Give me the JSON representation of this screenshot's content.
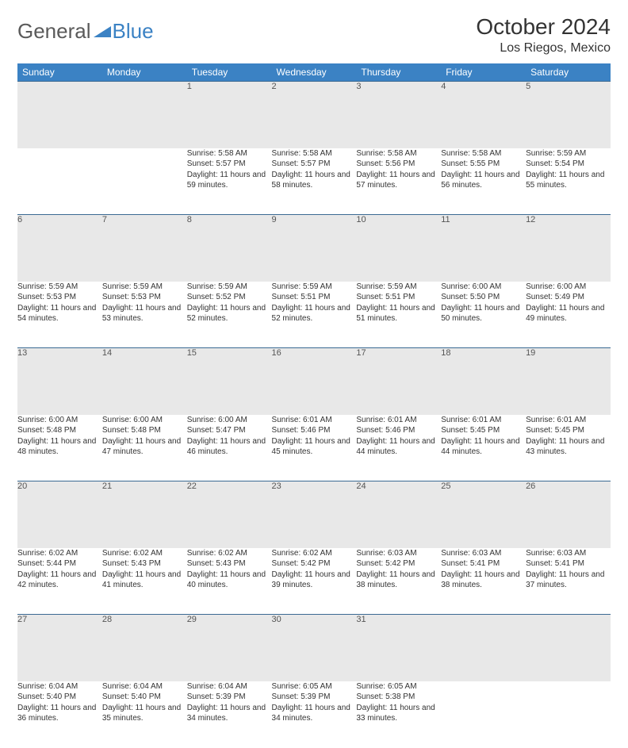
{
  "brand": {
    "part1": "General",
    "part2": "Blue"
  },
  "title": "October 2024",
  "location": "Los Riegos, Mexico",
  "colors": {
    "header_bg": "#3b82c4",
    "header_text": "#ffffff",
    "daynum_bg": "#e8e8e8",
    "row_separator": "#3b6a93",
    "body_text": "#333333",
    "logo_gray": "#5a5a5a",
    "logo_blue": "#3b82c4"
  },
  "weekdays": [
    "Sunday",
    "Monday",
    "Tuesday",
    "Wednesday",
    "Thursday",
    "Friday",
    "Saturday"
  ],
  "weeks": [
    [
      null,
      null,
      {
        "n": "1",
        "sr": "5:58 AM",
        "ss": "5:57 PM",
        "dl": "11 hours and 59 minutes."
      },
      {
        "n": "2",
        "sr": "5:58 AM",
        "ss": "5:57 PM",
        "dl": "11 hours and 58 minutes."
      },
      {
        "n": "3",
        "sr": "5:58 AM",
        "ss": "5:56 PM",
        "dl": "11 hours and 57 minutes."
      },
      {
        "n": "4",
        "sr": "5:58 AM",
        "ss": "5:55 PM",
        "dl": "11 hours and 56 minutes."
      },
      {
        "n": "5",
        "sr": "5:59 AM",
        "ss": "5:54 PM",
        "dl": "11 hours and 55 minutes."
      }
    ],
    [
      {
        "n": "6",
        "sr": "5:59 AM",
        "ss": "5:53 PM",
        "dl": "11 hours and 54 minutes."
      },
      {
        "n": "7",
        "sr": "5:59 AM",
        "ss": "5:53 PM",
        "dl": "11 hours and 53 minutes."
      },
      {
        "n": "8",
        "sr": "5:59 AM",
        "ss": "5:52 PM",
        "dl": "11 hours and 52 minutes."
      },
      {
        "n": "9",
        "sr": "5:59 AM",
        "ss": "5:51 PM",
        "dl": "11 hours and 52 minutes."
      },
      {
        "n": "10",
        "sr": "5:59 AM",
        "ss": "5:51 PM",
        "dl": "11 hours and 51 minutes."
      },
      {
        "n": "11",
        "sr": "6:00 AM",
        "ss": "5:50 PM",
        "dl": "11 hours and 50 minutes."
      },
      {
        "n": "12",
        "sr": "6:00 AM",
        "ss": "5:49 PM",
        "dl": "11 hours and 49 minutes."
      }
    ],
    [
      {
        "n": "13",
        "sr": "6:00 AM",
        "ss": "5:48 PM",
        "dl": "11 hours and 48 minutes."
      },
      {
        "n": "14",
        "sr": "6:00 AM",
        "ss": "5:48 PM",
        "dl": "11 hours and 47 minutes."
      },
      {
        "n": "15",
        "sr": "6:00 AM",
        "ss": "5:47 PM",
        "dl": "11 hours and 46 minutes."
      },
      {
        "n": "16",
        "sr": "6:01 AM",
        "ss": "5:46 PM",
        "dl": "11 hours and 45 minutes."
      },
      {
        "n": "17",
        "sr": "6:01 AM",
        "ss": "5:46 PM",
        "dl": "11 hours and 44 minutes."
      },
      {
        "n": "18",
        "sr": "6:01 AM",
        "ss": "5:45 PM",
        "dl": "11 hours and 44 minutes."
      },
      {
        "n": "19",
        "sr": "6:01 AM",
        "ss": "5:45 PM",
        "dl": "11 hours and 43 minutes."
      }
    ],
    [
      {
        "n": "20",
        "sr": "6:02 AM",
        "ss": "5:44 PM",
        "dl": "11 hours and 42 minutes."
      },
      {
        "n": "21",
        "sr": "6:02 AM",
        "ss": "5:43 PM",
        "dl": "11 hours and 41 minutes."
      },
      {
        "n": "22",
        "sr": "6:02 AM",
        "ss": "5:43 PM",
        "dl": "11 hours and 40 minutes."
      },
      {
        "n": "23",
        "sr": "6:02 AM",
        "ss": "5:42 PM",
        "dl": "11 hours and 39 minutes."
      },
      {
        "n": "24",
        "sr": "6:03 AM",
        "ss": "5:42 PM",
        "dl": "11 hours and 38 minutes."
      },
      {
        "n": "25",
        "sr": "6:03 AM",
        "ss": "5:41 PM",
        "dl": "11 hours and 38 minutes."
      },
      {
        "n": "26",
        "sr": "6:03 AM",
        "ss": "5:41 PM",
        "dl": "11 hours and 37 minutes."
      }
    ],
    [
      {
        "n": "27",
        "sr": "6:04 AM",
        "ss": "5:40 PM",
        "dl": "11 hours and 36 minutes."
      },
      {
        "n": "28",
        "sr": "6:04 AM",
        "ss": "5:40 PM",
        "dl": "11 hours and 35 minutes."
      },
      {
        "n": "29",
        "sr": "6:04 AM",
        "ss": "5:39 PM",
        "dl": "11 hours and 34 minutes."
      },
      {
        "n": "30",
        "sr": "6:05 AM",
        "ss": "5:39 PM",
        "dl": "11 hours and 34 minutes."
      },
      {
        "n": "31",
        "sr": "6:05 AM",
        "ss": "5:38 PM",
        "dl": "11 hours and 33 minutes."
      },
      null,
      null
    ]
  ],
  "labels": {
    "sunrise": "Sunrise:",
    "sunset": "Sunset:",
    "daylight": "Daylight:"
  }
}
